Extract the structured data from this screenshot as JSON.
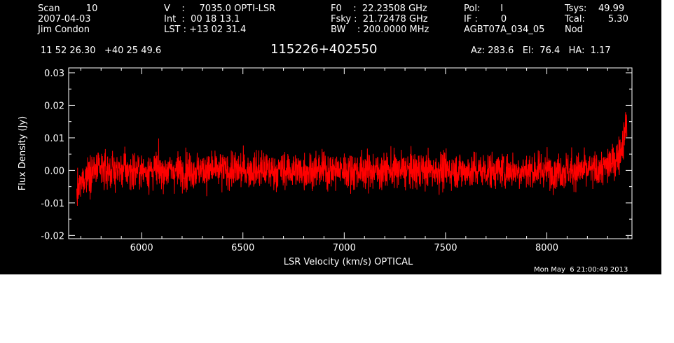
{
  "header": {
    "col1": [
      "Scan         10",
      "2007-04-03",
      "Jim Condon"
    ],
    "col2": [
      "V    :     7035.0 OPTI-LSR",
      "Int  :  00 18 13.1",
      "LST : +13 02 31.4"
    ],
    "col3": [
      "F0    :  22.23508 GHz",
      "Fsky :  21.72478 GHz",
      "BW    : 200.0000 MHz"
    ],
    "col4": [
      "Pol:       I",
      "IF :        0",
      "AGBT07A_034_05"
    ],
    "col5": [
      "Tsys:    49.99",
      "Tcal:        5.30",
      "Nod"
    ],
    "coords": "11 52 26.30   +40 25 49.6",
    "source": "115226+402550",
    "azel": "Az: 283.6   El:  76.4   HA:  1.17",
    "timestamp": "Mon May  6 21:00:49 2013"
  },
  "chart_data": {
    "type": "line",
    "xlabel": "LSR Velocity (km/s) OPTICAL",
    "ylabel": "Flux Density (Jy)",
    "xlim": [
      5640,
      8420
    ],
    "ylim": [
      -0.021,
      0.0315
    ],
    "x_ticks": [
      6000,
      6500,
      7000,
      7500,
      8000
    ],
    "x_tick_labels": [
      "6000",
      "6500",
      "7000",
      "7500",
      "8000"
    ],
    "y_ticks": [
      -0.02,
      -0.01,
      0.0,
      0.01,
      0.02,
      0.03
    ],
    "y_tick_labels": [
      "-0.02",
      "-0.01",
      "0.00",
      "0.01",
      "0.02",
      "0.03"
    ],
    "grid": false,
    "background": "#000000",
    "axis_color": "#ffffff",
    "series": [
      {
        "color": "#ff0000",
        "x_range": [
          5680,
          8395
        ],
        "noise_rms": 0.0045,
        "envelope_x": [
          5680,
          5700,
          5720,
          5750,
          6000,
          6500,
          7000,
          7500,
          8000,
          8250,
          8320,
          8360,
          8380,
          8395
        ],
        "envelope_y": [
          -0.008,
          -0.004,
          -0.002,
          0.0,
          0.0,
          0.0,
          0.0,
          0.0,
          0.0,
          0.0,
          0.002,
          0.005,
          0.01,
          0.016
        ]
      }
    ]
  }
}
